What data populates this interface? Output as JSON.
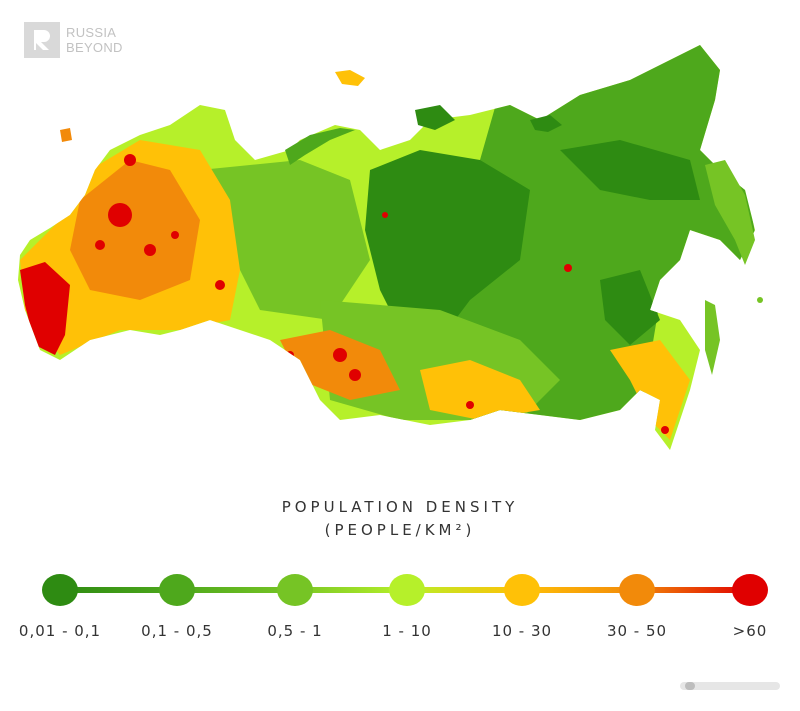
{
  "brand": {
    "line1": "RUSSIA",
    "line2": "BEYOND"
  },
  "title": {
    "line1": "POPULATION DENSITY",
    "line2": "(PEOPLE/KM²)"
  },
  "legend": [
    {
      "label": "0,01 - 0,1",
      "color": "#2e8b12"
    },
    {
      "label": "0,1 - 0,5",
      "color": "#4ea81c"
    },
    {
      "label": "0,5 - 1",
      "color": "#76c425"
    },
    {
      "label": "1 - 10",
      "color": "#b6f02a"
    },
    {
      "label": "10 - 30",
      "color": "#ffc107"
    },
    {
      "label": "30 - 50",
      "color": "#f28a0a"
    },
    {
      "label": ">60",
      "color": "#e00000"
    }
  ]
}
